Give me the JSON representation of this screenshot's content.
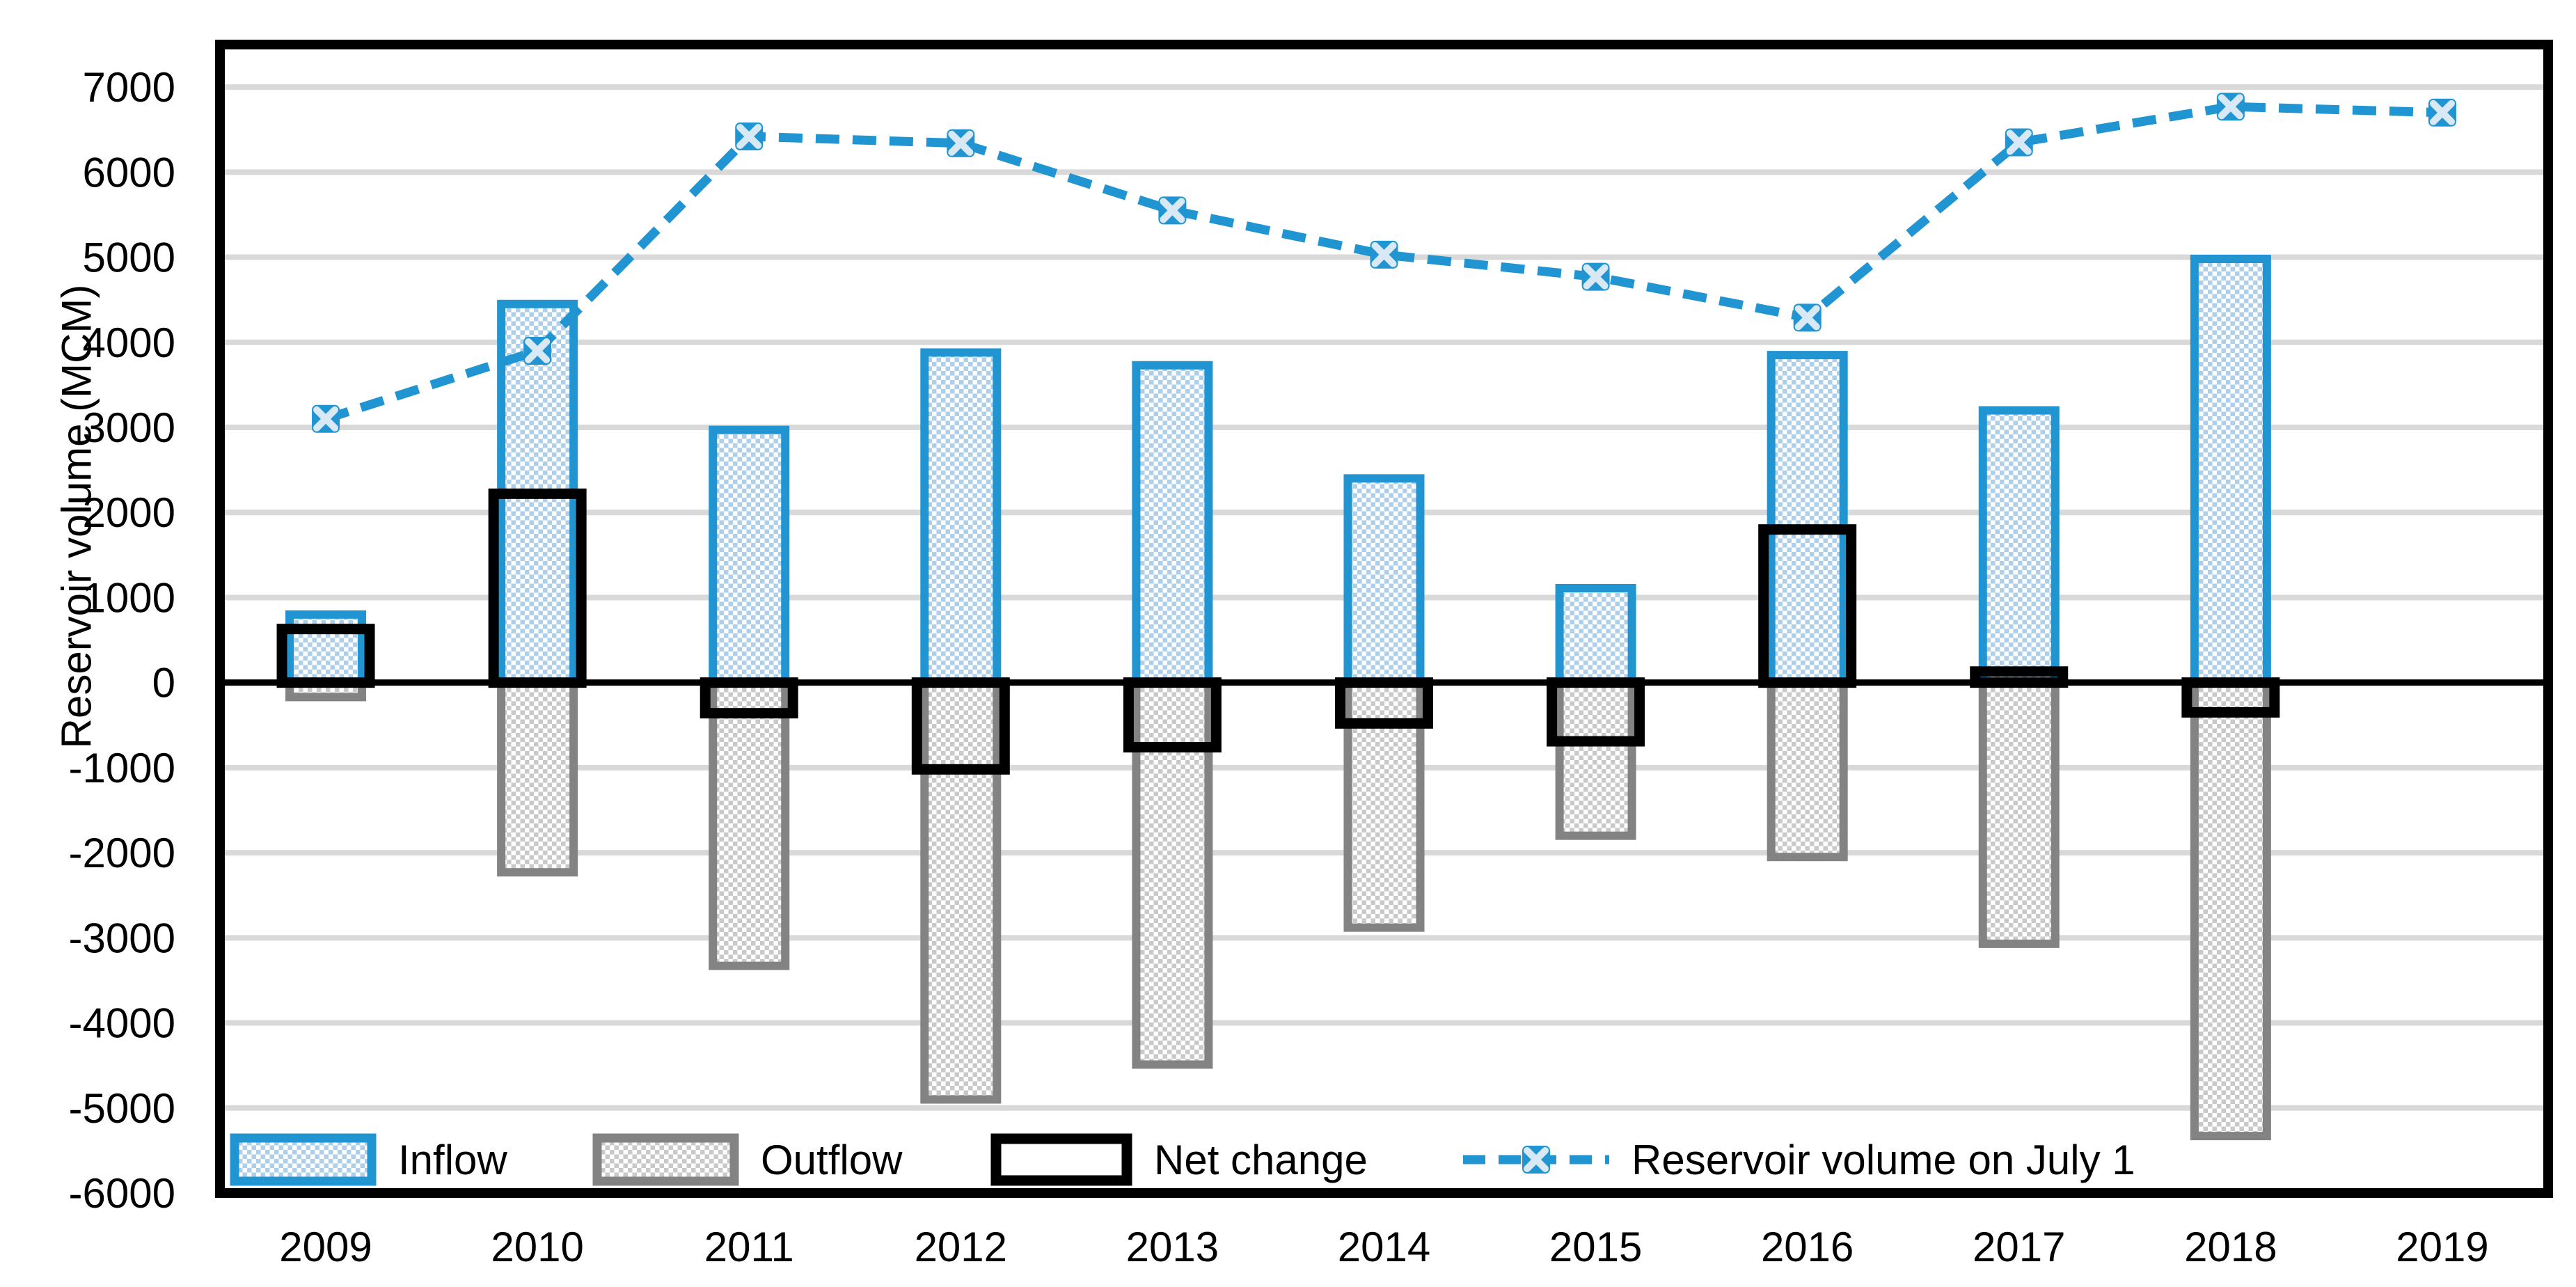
{
  "chart_data": {
    "type": "combo-bar-line",
    "title": "",
    "xlabel": "",
    "ylabel": "Reservoir volume (MCM)",
    "categories": [
      "2009",
      "2010",
      "2011",
      "2012",
      "2013",
      "2014",
      "2015",
      "2016",
      "2017",
      "2018",
      "2019"
    ],
    "series": [
      {
        "name": "Inflow",
        "type": "bar",
        "values": [
          800,
          4450,
          2970,
          3880,
          3730,
          2400,
          1110,
          3850,
          3200,
          4980,
          null
        ]
      },
      {
        "name": "Outflow",
        "type": "bar",
        "values": [
          -170,
          -2230,
          -3330,
          -4900,
          -4490,
          -2880,
          -1800,
          -2050,
          -3070,
          -5330,
          null
        ]
      },
      {
        "name": "Net change",
        "type": "bar-outline",
        "values": [
          630,
          2220,
          -360,
          -1020,
          -760,
          -480,
          -690,
          1800,
          130,
          -350,
          null
        ]
      },
      {
        "name": "Reservoir volume on July 1",
        "type": "line-dashed-x-marker",
        "values": [
          3100,
          3900,
          6420,
          6340,
          5550,
          5030,
          4770,
          4290,
          6350,
          6770,
          6700
        ]
      }
    ],
    "ylim": [
      -6000,
      7500
    ],
    "ytick_step": 1000,
    "ytick_labels": [
      "7000",
      "6000",
      "5000",
      "4000",
      "3000",
      "2000",
      "1000",
      "0",
      "-1000",
      "-2000",
      "-3000",
      "-4000",
      "-5000",
      "-6000"
    ],
    "grid": true,
    "legend_position": "inside-bottom-left"
  },
  "colors": {
    "accent_blue": "#2095D2",
    "light_blue_fill": "#AECFE9",
    "gray_border": "#838383",
    "light_gray_fill": "#C9C9C9",
    "gridline": "#D9D9D9",
    "axis_black": "#000000",
    "marker_cross": "#D8E8F4",
    "background": "#ffffff"
  }
}
